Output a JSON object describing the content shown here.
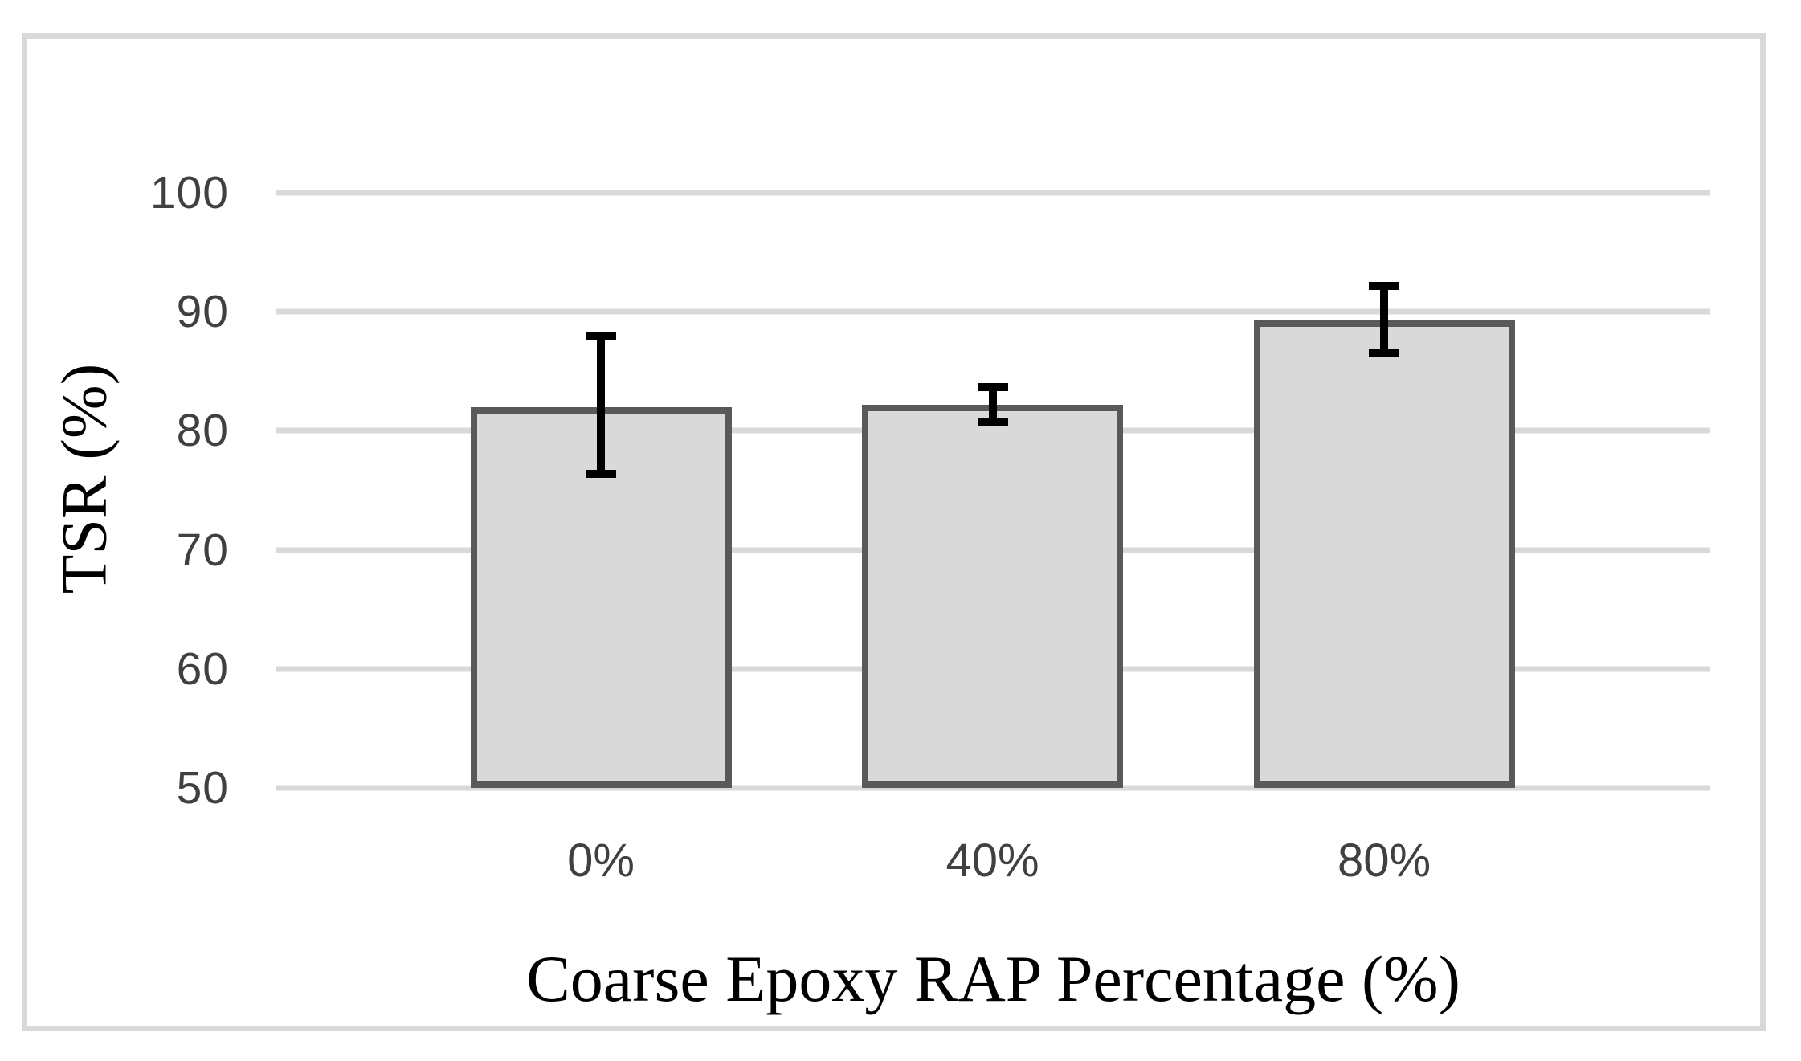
{
  "chart_data": {
    "type": "bar",
    "title": "",
    "categories": [
      "0%",
      "40%",
      "80%"
    ],
    "values": [
      82,
      82.2,
      89.3
    ],
    "error_low": [
      76.4,
      80.7,
      86.6
    ],
    "error_high": [
      88,
      83.7,
      92.2
    ],
    "xlabel": "Coarse Epoxy RAP Percentage (%)",
    "ylabel": "TSR (%)",
    "ylim": [
      50,
      100
    ],
    "yticks": [
      50,
      60,
      70,
      80,
      90,
      100
    ],
    "ytick_labels": [
      "50",
      "60",
      "70",
      "80",
      "90",
      "100"
    ],
    "grid": true,
    "legend_position": "none",
    "colors": {
      "bar_fill": "#d9d9d9",
      "bar_border": "#595959",
      "gridline": "#d9d9d9",
      "frame_border": "#d9d9d9",
      "error_bar": "#000000",
      "tick_label": "#404040",
      "axis_title": "#000000"
    }
  }
}
